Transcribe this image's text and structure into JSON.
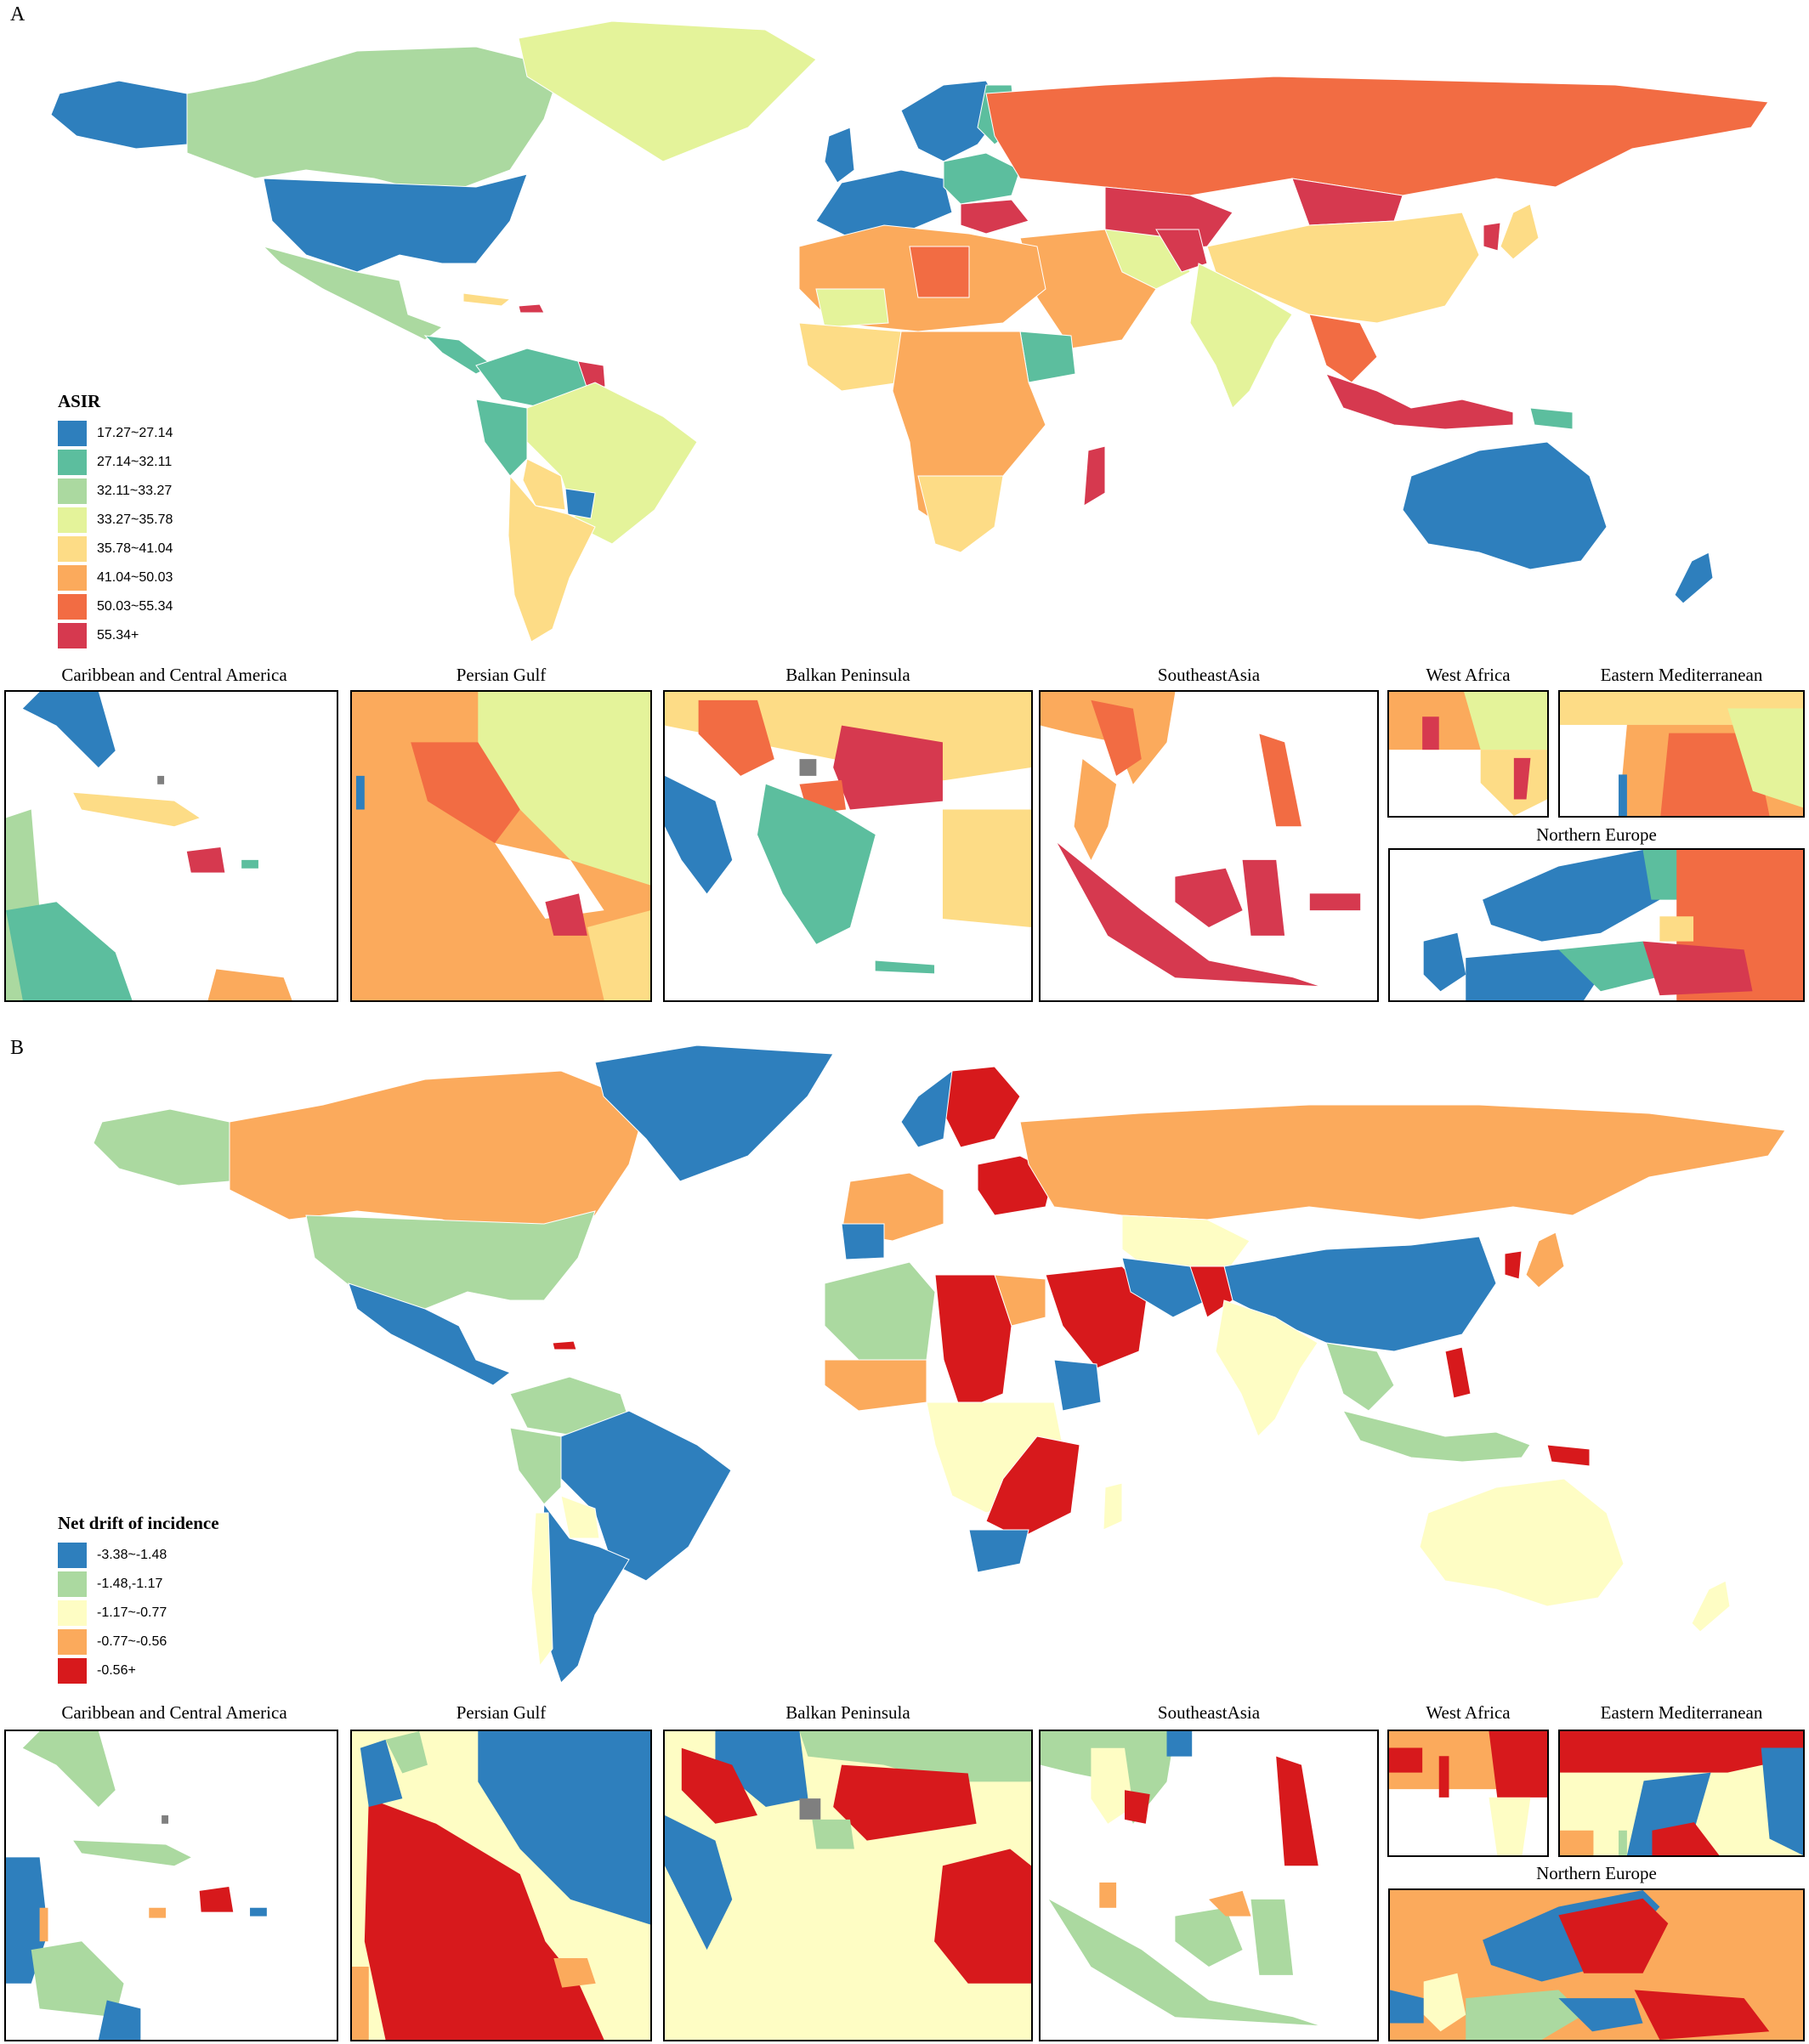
{
  "panels": [
    {
      "letter": "A",
      "legend": {
        "title": "ASIR",
        "items": [
          {
            "label": "17.27~27.14",
            "color": "#2e7fbd"
          },
          {
            "label": "27.14~32.11",
            "color": "#5cbe9e"
          },
          {
            "label": "32.11~33.27",
            "color": "#abd9a0"
          },
          {
            "label": "33.27~35.78",
            "color": "#e4f39a"
          },
          {
            "label": "35.78~41.04",
            "color": "#fddc86"
          },
          {
            "label": "41.04~50.03",
            "color": "#fbaa5c"
          },
          {
            "label": "50.03~55.34",
            "color": "#f26c43"
          },
          {
            "label": "55.34+",
            "color": "#d6394f"
          }
        ]
      },
      "insets": [
        {
          "title": "Caribbean and Central America"
        },
        {
          "title": "Persian Gulf"
        },
        {
          "title": "Balkan Peninsula"
        },
        {
          "title": "SoutheastAsia"
        },
        {
          "title": "West Africa"
        },
        {
          "title": "Eastern Mediterranean"
        },
        {
          "title": "Northern Europe"
        }
      ]
    },
    {
      "letter": "B",
      "legend": {
        "title": "Net drift of incidence",
        "items": [
          {
            "label": "-3.38~-1.48",
            "color": "#2e7fbd"
          },
          {
            "label": "-1.48,-1.17",
            "color": "#abd9a0"
          },
          {
            "label": "-1.17~-0.77",
            "color": "#fefdc4"
          },
          {
            "label": "-0.77~-0.56",
            "color": "#fbaa5c"
          },
          {
            "label": "-0.56+",
            "color": "#d7191c"
          }
        ]
      },
      "insets": [
        {
          "title": "Caribbean and Central America"
        },
        {
          "title": "Persian Gulf"
        },
        {
          "title": "Balkan Peninsula"
        },
        {
          "title": "SoutheastAsia"
        },
        {
          "title": "West Africa"
        },
        {
          "title": "Eastern Mediterranean"
        },
        {
          "title": "Northern Europe"
        }
      ]
    }
  ],
  "colors": {
    "missing": "#7f7f7f",
    "border": "#d9d9d9"
  }
}
